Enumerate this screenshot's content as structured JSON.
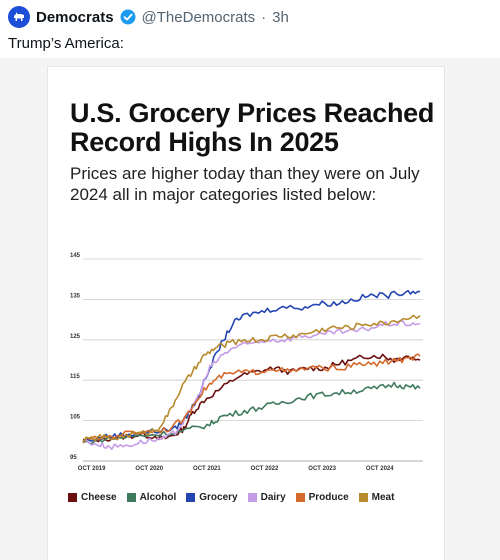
{
  "post": {
    "author": "Democrats",
    "handle": "@TheDemocrats",
    "separator": "·",
    "time": "3h",
    "text": "Trump’s America:"
  },
  "media": {
    "title": "U.S. Grocery Prices Reached Record Highs In 2025",
    "subtitle": "Prices are higher today than they were on July 2024 all in major categories listed below:"
  },
  "chart_data": {
    "type": "line",
    "title": "U.S. Grocery Prices Reached Record Highs In 2025",
    "subtitle": "Prices are higher today than they were on July 2024 all in major categories listed below:",
    "ylim": [
      95,
      145
    ],
    "yticks": [
      95,
      105,
      115,
      125,
      135,
      145
    ],
    "xticks": [
      "OCT 2019",
      "OCT 2020",
      "OCT 2021",
      "OCT 2022",
      "OCT 2023",
      "OCT 2024"
    ],
    "xlim": [
      2019.6,
      2025.5
    ],
    "grid": true,
    "legend_position": "bottom",
    "series": [
      {
        "name": "Cheese",
        "color": "#6b0f0f",
        "points": [
          [
            2019.6,
            100
          ],
          [
            2020.0,
            100.5
          ],
          [
            2020.3,
            101
          ],
          [
            2020.6,
            101.5
          ],
          [
            2020.9,
            101
          ],
          [
            2021.0,
            100.5
          ],
          [
            2021.2,
            101.5
          ],
          [
            2021.35,
            103
          ],
          [
            2021.5,
            107
          ],
          [
            2021.7,
            110
          ],
          [
            2022.0,
            113
          ],
          [
            2022.3,
            116
          ],
          [
            2022.6,
            117
          ],
          [
            2022.9,
            118
          ],
          [
            2023.2,
            117
          ],
          [
            2023.5,
            118
          ],
          [
            2023.8,
            118
          ],
          [
            2024.0,
            119
          ],
          [
            2024.3,
            120
          ],
          [
            2024.5,
            121
          ],
          [
            2024.8,
            121
          ],
          [
            2025.0,
            120
          ],
          [
            2025.2,
            121
          ],
          [
            2025.45,
            120
          ]
        ]
      },
      {
        "name": "Alcohol",
        "color": "#3f7a5e",
        "points": [
          [
            2019.6,
            99.5
          ],
          [
            2020.0,
            100.5
          ],
          [
            2020.4,
            101
          ],
          [
            2020.8,
            101.5
          ],
          [
            2021.2,
            102
          ],
          [
            2021.5,
            103
          ],
          [
            2021.8,
            104
          ],
          [
            2022.0,
            106
          ],
          [
            2022.3,
            107
          ],
          [
            2022.6,
            108
          ],
          [
            2022.9,
            109
          ],
          [
            2023.2,
            110
          ],
          [
            2023.5,
            111
          ],
          [
            2023.8,
            111.5
          ],
          [
            2024.1,
            112
          ],
          [
            2024.4,
            112.5
          ],
          [
            2024.7,
            113
          ],
          [
            2025.0,
            114
          ],
          [
            2025.2,
            113.5
          ],
          [
            2025.45,
            113
          ]
        ]
      },
      {
        "name": "Grocery",
        "color": "#2446b0",
        "points": [
          [
            2019.6,
            100
          ],
          [
            2020.0,
            101
          ],
          [
            2020.3,
            101.5
          ],
          [
            2020.6,
            102
          ],
          [
            2020.9,
            102.5
          ],
          [
            2021.2,
            103
          ],
          [
            2021.4,
            106
          ],
          [
            2021.6,
            111
          ],
          [
            2021.8,
            118
          ],
          [
            2022.0,
            124
          ],
          [
            2022.2,
            129
          ],
          [
            2022.4,
            131
          ],
          [
            2022.7,
            132
          ],
          [
            2023.0,
            133
          ],
          [
            2023.4,
            133
          ],
          [
            2023.7,
            134
          ],
          [
            2024.0,
            134
          ],
          [
            2024.3,
            135
          ],
          [
            2024.6,
            136
          ],
          [
            2024.9,
            136
          ],
          [
            2025.2,
            137
          ],
          [
            2025.45,
            137
          ]
        ]
      },
      {
        "name": "Dairy",
        "color": "#c59be6",
        "points": [
          [
            2019.6,
            100
          ],
          [
            2019.9,
            99
          ],
          [
            2020.1,
            98.5
          ],
          [
            2020.4,
            99
          ],
          [
            2020.7,
            100
          ],
          [
            2021.0,
            100.5
          ],
          [
            2021.2,
            102
          ],
          [
            2021.4,
            106
          ],
          [
            2021.6,
            111
          ],
          [
            2021.8,
            118
          ],
          [
            2022.0,
            121
          ],
          [
            2022.2,
            123
          ],
          [
            2022.5,
            124
          ],
          [
            2022.8,
            125
          ],
          [
            2023.1,
            125
          ],
          [
            2023.4,
            126
          ],
          [
            2023.7,
            126
          ],
          [
            2024.0,
            127
          ],
          [
            2024.3,
            127
          ],
          [
            2024.6,
            128
          ],
          [
            2024.9,
            129
          ],
          [
            2025.2,
            129
          ],
          [
            2025.45,
            129
          ]
        ]
      },
      {
        "name": "Produce",
        "color": "#d46a2c",
        "points": [
          [
            2019.6,
            100
          ],
          [
            2020.0,
            101
          ],
          [
            2020.4,
            102
          ],
          [
            2020.8,
            102.5
          ],
          [
            2021.1,
            103
          ],
          [
            2021.4,
            106
          ],
          [
            2021.6,
            111
          ],
          [
            2021.8,
            114
          ],
          [
            2022.0,
            116
          ],
          [
            2022.3,
            117
          ],
          [
            2022.6,
            117
          ],
          [
            2022.9,
            118
          ],
          [
            2023.2,
            117
          ],
          [
            2023.5,
            118
          ],
          [
            2023.8,
            118
          ],
          [
            2024.1,
            118
          ],
          [
            2024.4,
            119
          ],
          [
            2024.7,
            119
          ],
          [
            2025.0,
            120
          ],
          [
            2025.2,
            120
          ],
          [
            2025.45,
            121
          ]
        ]
      },
      {
        "name": "Meat",
        "color": "#b88a2e",
        "points": [
          [
            2019.6,
            100
          ],
          [
            2019.9,
            101
          ],
          [
            2020.1,
            100.5
          ],
          [
            2020.4,
            101.5
          ],
          [
            2020.7,
            102
          ],
          [
            2020.9,
            103
          ],
          [
            2021.1,
            107
          ],
          [
            2021.3,
            113
          ],
          [
            2021.5,
            117
          ],
          [
            2021.7,
            121
          ],
          [
            2021.9,
            123
          ],
          [
            2022.1,
            124
          ],
          [
            2022.4,
            125
          ],
          [
            2022.7,
            125
          ],
          [
            2023.0,
            126
          ],
          [
            2023.3,
            126
          ],
          [
            2023.6,
            127
          ],
          [
            2023.9,
            128
          ],
          [
            2024.2,
            128
          ],
          [
            2024.5,
            129
          ],
          [
            2024.8,
            129
          ],
          [
            2025.1,
            130
          ],
          [
            2025.45,
            131
          ]
        ]
      }
    ]
  },
  "legend": [
    {
      "label": "Cheese",
      "color": "#6b0f0f"
    },
    {
      "label": "Alcohol",
      "color": "#3f7a5e"
    },
    {
      "label": "Grocery",
      "color": "#2446b0"
    },
    {
      "label": "Dairy",
      "color": "#c59be6"
    },
    {
      "label": "Produce",
      "color": "#d46a2c"
    },
    {
      "label": "Meat",
      "color": "#b88a2e"
    }
  ],
  "colors": {
    "avatar": "#1d4ed8",
    "verified": "#1d9bf0"
  },
  "icons": {
    "avatar": "donkey-logo-icon",
    "verified": "verified-badge-icon"
  }
}
